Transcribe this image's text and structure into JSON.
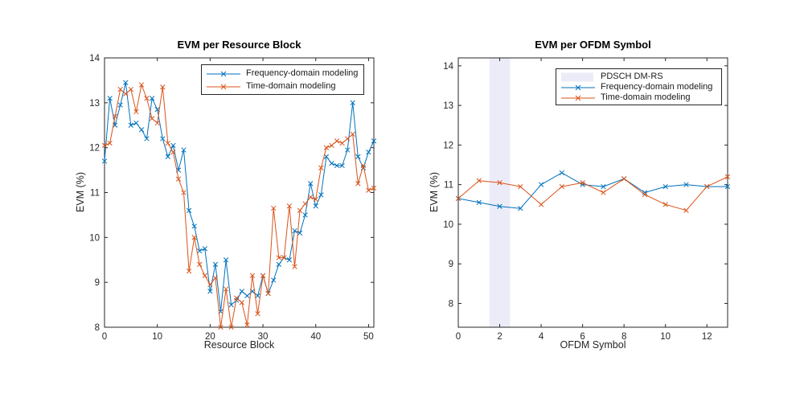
{
  "window": {
    "background": "#ffffff"
  },
  "colors": {
    "blue": "#0072BD",
    "orange": "#D95319",
    "band": "#ececf9",
    "axis": "#262626",
    "tick_text": "#262626",
    "title_text": "#000000"
  },
  "chart_data": [
    {
      "type": "line",
      "title": "EVM per Resource Block",
      "xlabel": "Resource Block",
      "ylabel": "EVM (%)",
      "xlim": [
        0,
        51
      ],
      "ylim": [
        8,
        14
      ],
      "xticks": [
        0,
        10,
        20,
        30,
        40,
        50
      ],
      "yticks": [
        8,
        9,
        10,
        11,
        12,
        13,
        14
      ],
      "grid": false,
      "legend_position": "top-right-inside",
      "x_start": 0,
      "x_step": 1,
      "series": [
        {
          "name": "Frequency-domain modeling",
          "color": "blue",
          "marker": "x",
          "values": [
            11.7,
            13.1,
            12.5,
            12.95,
            13.45,
            12.5,
            12.55,
            12.4,
            12.2,
            13.1,
            12.85,
            12.2,
            11.8,
            12.05,
            11.5,
            11.95,
            10.6,
            10.25,
            9.7,
            9.75,
            8.8,
            9.4,
            8.35,
            9.5,
            8.5,
            8.6,
            8.8,
            8.7,
            8.8,
            8.7,
            9.15,
            8.75,
            9.05,
            9.4,
            9.55,
            9.5,
            10.15,
            10.1,
            10.5,
            11.2,
            10.7,
            10.95,
            11.8,
            11.65,
            11.6,
            11.6,
            11.95,
            13.0,
            11.8,
            11.55,
            11.9,
            12.15
          ]
        },
        {
          "name": "Time-domain modeling",
          "color": "orange",
          "marker": "x",
          "values": [
            12.05,
            12.1,
            12.7,
            13.3,
            13.2,
            13.3,
            12.8,
            13.4,
            13.1,
            12.65,
            12.55,
            13.35,
            12.1,
            11.9,
            11.3,
            11.0,
            9.25,
            10.0,
            9.4,
            9.15,
            8.95,
            9.1,
            8.0,
            8.85,
            8.0,
            8.65,
            8.55,
            8.05,
            9.15,
            8.3,
            9.15,
            8.75,
            10.65,
            9.55,
            9.55,
            10.7,
            9.35,
            10.6,
            10.75,
            10.9,
            10.85,
            11.55,
            12.0,
            12.05,
            12.15,
            12.1,
            12.2,
            12.3,
            11.2,
            11.6,
            11.05,
            11.1
          ]
        }
      ],
      "legend": {
        "entries": [
          {
            "label": "Frequency-domain modeling",
            "swatch": "line",
            "color": "blue"
          },
          {
            "label": "Time-domain modeling",
            "swatch": "line",
            "color": "orange"
          }
        ]
      }
    },
    {
      "type": "line",
      "title": "EVM per OFDM Symbol",
      "xlabel": "OFDM Symbol",
      "ylabel": "EVM (%)",
      "xlim": [
        0,
        13
      ],
      "ylim": [
        7.4,
        14.2
      ],
      "xticks": [
        0,
        2,
        4,
        6,
        8,
        10,
        12
      ],
      "yticks": [
        8,
        9,
        10,
        11,
        12,
        13,
        14
      ],
      "grid": false,
      "legend_position": "top-right-inside",
      "band": {
        "label": "PDSCH DM-RS",
        "x_from": 1.5,
        "x_to": 2.5,
        "color": "band"
      },
      "x_start": 0,
      "x_step": 1,
      "series": [
        {
          "name": "Frequency-domain modeling",
          "color": "blue",
          "marker": "x",
          "values": [
            10.65,
            10.55,
            10.45,
            10.4,
            11.0,
            11.3,
            11.0,
            10.95,
            11.15,
            10.8,
            10.95,
            11.0,
            10.95,
            10.95
          ]
        },
        {
          "name": "Time-domain modeling",
          "color": "orange",
          "marker": "x",
          "values": [
            10.65,
            11.1,
            11.05,
            10.95,
            10.5,
            10.95,
            11.05,
            10.8,
            11.15,
            10.75,
            10.5,
            10.35,
            10.95,
            11.2
          ]
        }
      ],
      "legend": {
        "entries": [
          {
            "label": "PDSCH DM-RS",
            "swatch": "patch",
            "color": "band"
          },
          {
            "label": "Frequency-domain modeling",
            "swatch": "line",
            "color": "blue"
          },
          {
            "label": "Time-domain modeling",
            "swatch": "line",
            "color": "orange"
          }
        ]
      }
    }
  ]
}
